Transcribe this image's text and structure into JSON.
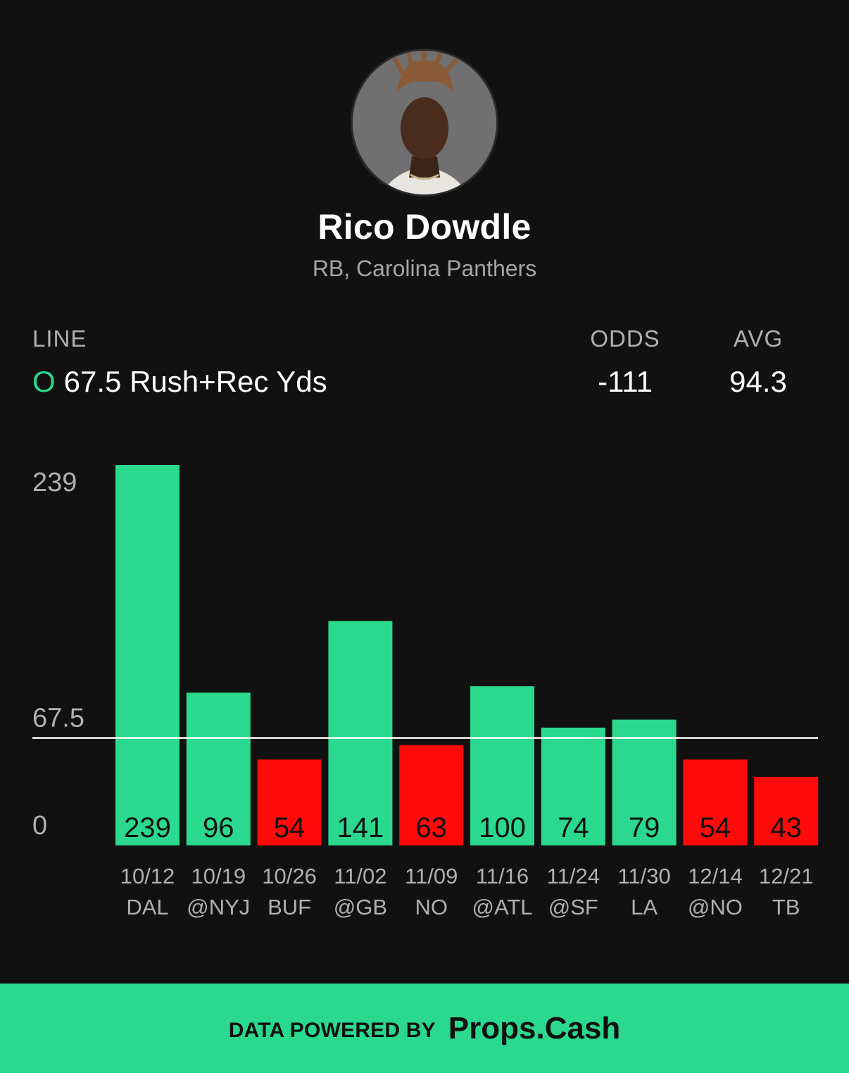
{
  "player": {
    "name": "Rico Dowdle",
    "position_team": "RB, Carolina Panthers"
  },
  "stats_header": {
    "line_label": "LINE",
    "odds_label": "ODDS",
    "avg_label": "AVG"
  },
  "stats": {
    "over_under": "O",
    "line_text": "67.5 Rush+Rec Yds",
    "odds": "-111",
    "avg": "94.3"
  },
  "colors": {
    "background": "#111111",
    "hit": "#2ad98d",
    "miss": "#ff0a0a",
    "line": "#ffffff",
    "axis_text": "#b0b0b0"
  },
  "chart_data": {
    "type": "bar",
    "categories": [
      "10/12 DAL",
      "10/19 @NYJ",
      "10/26 BUF",
      "11/02 @GB",
      "11/09 NO",
      "11/16 @ATL",
      "11/24 @SF",
      "11/30 LA",
      "12/14 @NO",
      "12/21 TB"
    ],
    "dates": [
      "10/12",
      "10/19",
      "10/26",
      "11/02",
      "11/09",
      "11/16",
      "11/24",
      "11/30",
      "12/14",
      "12/21"
    ],
    "opponents": [
      "DAL",
      "@NYJ",
      "BUF",
      "@GB",
      "NO",
      "@ATL",
      "@SF",
      "LA",
      "@NO",
      "TB"
    ],
    "values": [
      239,
      96,
      54,
      141,
      63,
      100,
      74,
      79,
      54,
      43
    ],
    "threshold": 67.5,
    "y_ticks": [
      0,
      67.5,
      239
    ],
    "ylim": [
      0,
      239
    ],
    "grid": false,
    "title": "",
    "xlabel": "",
    "ylabel": ""
  },
  "footer": {
    "prefix": "DATA POWERED BY",
    "brand": "Props.Cash"
  }
}
